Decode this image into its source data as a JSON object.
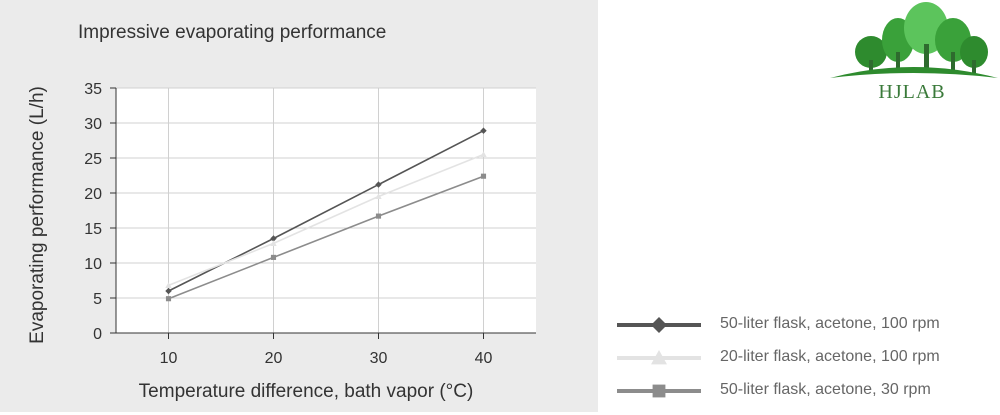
{
  "chart_data": {
    "type": "line",
    "title": "Impressive evaporating performance",
    "xlabel": "Temperature difference, bath vapor (°C)",
    "ylabel": "Evaporating performance (L/h)",
    "xlim": [
      5,
      45
    ],
    "ylim": [
      0,
      35
    ],
    "x_ticks": [
      10,
      20,
      30,
      40
    ],
    "y_ticks": [
      0,
      5,
      10,
      15,
      20,
      25,
      30,
      35
    ],
    "grid": true,
    "legend_position": "bottom-right, outside plot",
    "x": [
      10,
      20,
      30,
      40
    ],
    "series": [
      {
        "name": "50-liter flask, acetone, 100 rpm",
        "values": [
          6.0,
          13.5,
          21.2,
          28.9
        ],
        "color": "#555555",
        "marker": "diamond"
      },
      {
        "name": "20-liter flask, acetone, 100 rpm",
        "values": [
          6.8,
          12.8,
          19.5,
          25.5
        ],
        "color": "#e3e3e3",
        "marker": "triangle"
      },
      {
        "name": "50-liter flask, acetone, 30 rpm",
        "values": [
          4.9,
          10.8,
          16.7,
          22.4
        ],
        "color": "#8c8c8c",
        "marker": "square"
      }
    ]
  },
  "colors": {
    "panel_background": "#ebebeb",
    "plot_background": "#ffffff",
    "grid": "#d0d0d0",
    "axis": "#333333",
    "logo_green_dark": "#2e8b2e",
    "logo_green_light": "#5cc45c",
    "logo_text": "#3a7a3a"
  },
  "logo": {
    "text": "HJLAB",
    "icon": "trees-logo-icon"
  }
}
